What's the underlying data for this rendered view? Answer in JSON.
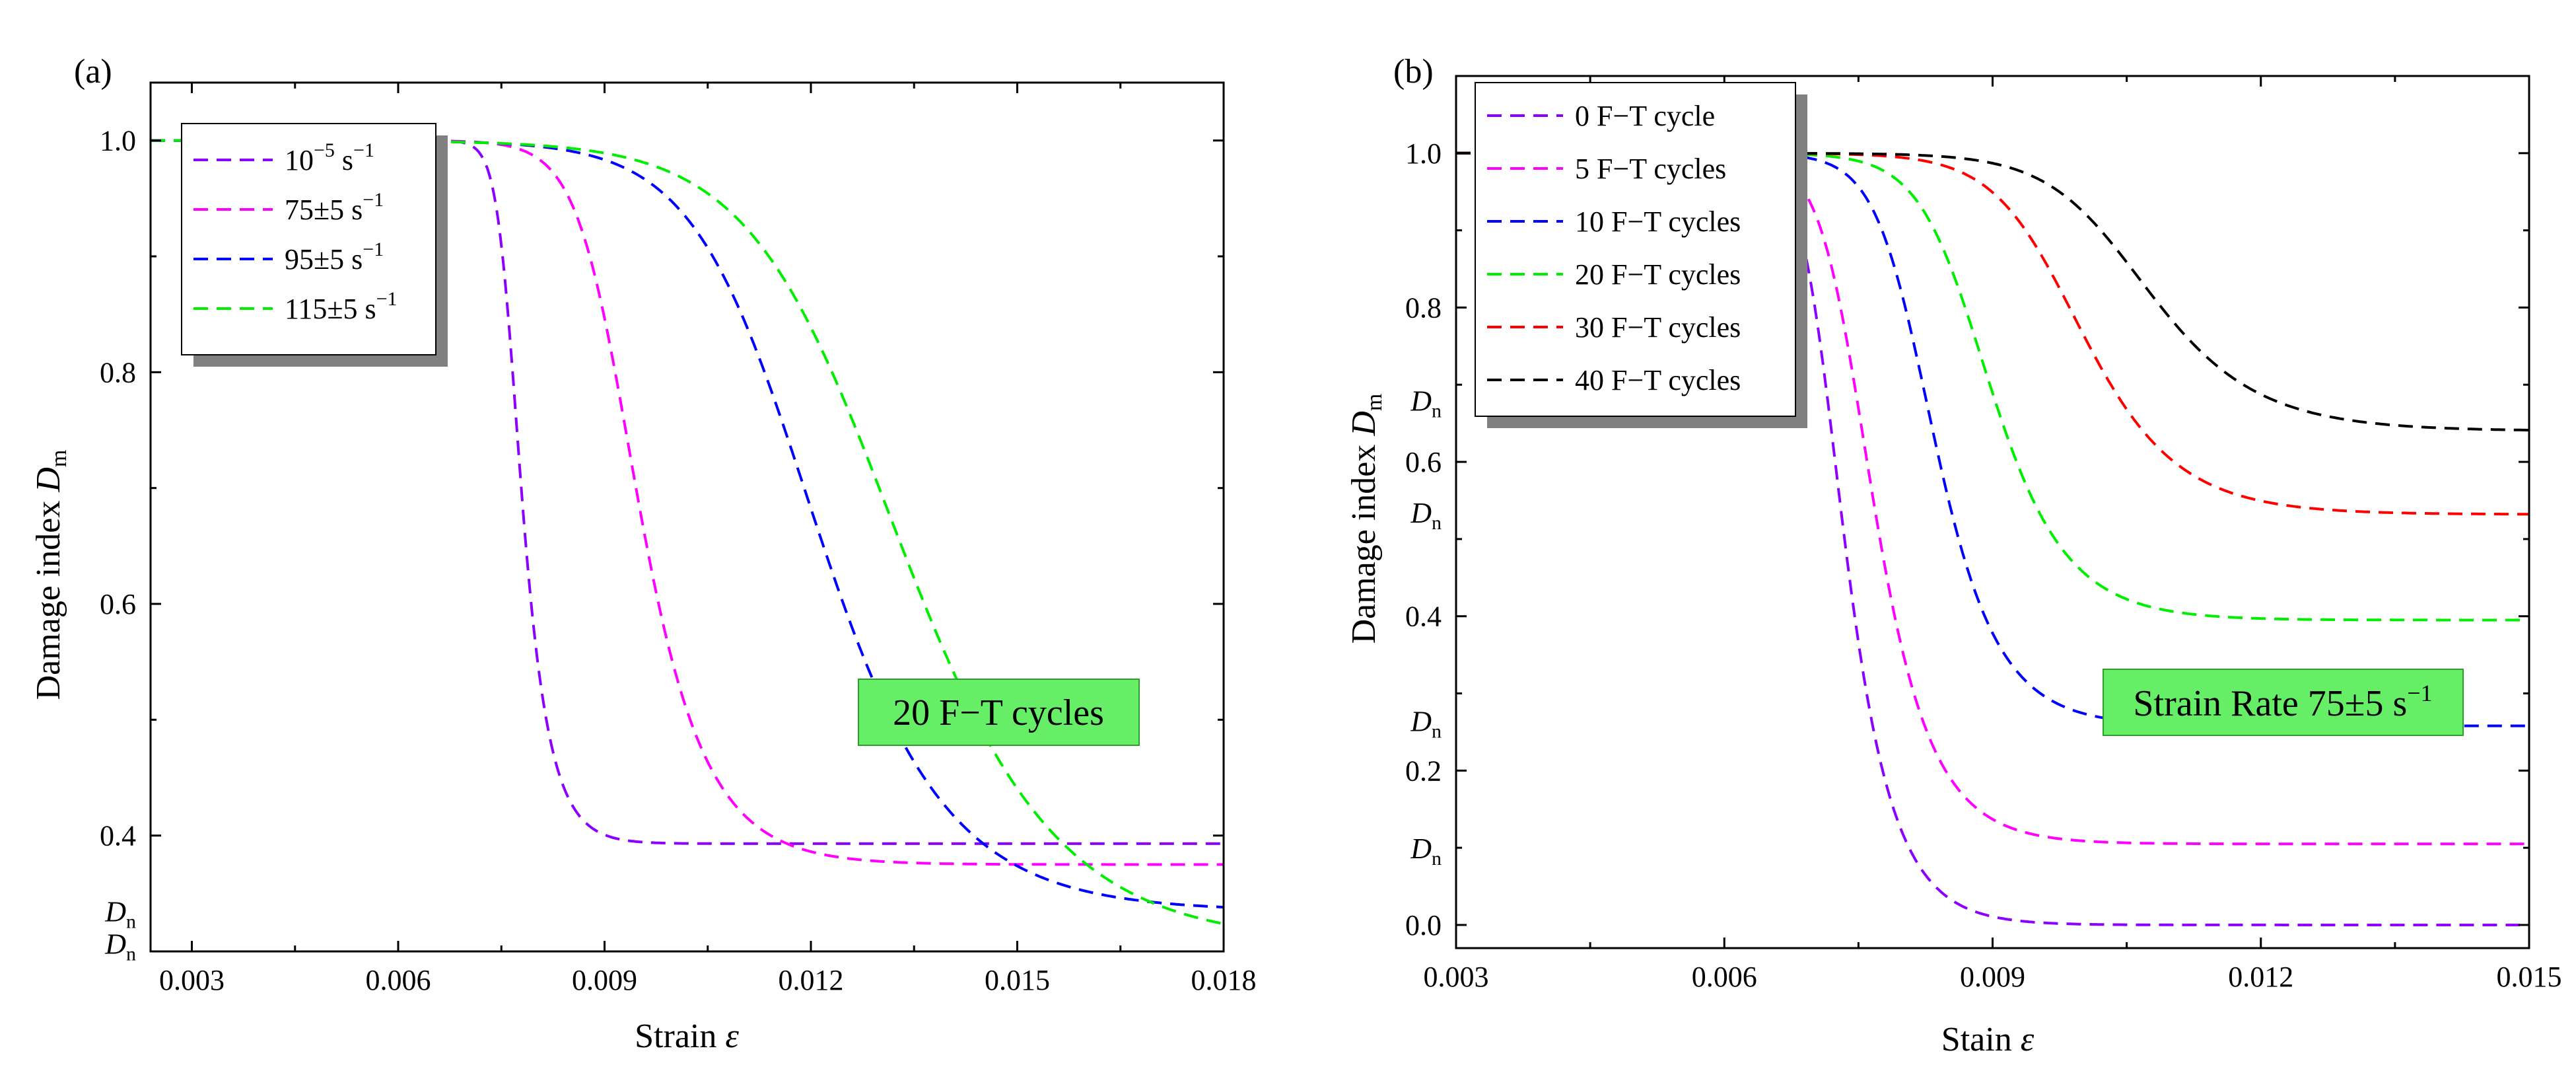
{
  "chart_data": [
    {
      "type": "line",
      "panel_label": "(a)",
      "xlabel": "Strain",
      "xlabel_symbol": "ε",
      "ylabel": "Damage index",
      "ylabel_symbol": "D",
      "ylabel_subscript": "m",
      "xlim": [
        0.0024,
        0.018
      ],
      "ylim": [
        0.3,
        1.05
      ],
      "x_ticks": [
        0.003,
        0.006,
        0.009,
        0.012,
        0.015,
        0.018
      ],
      "x_tick_labels": [
        "0.003",
        "0.006",
        "0.009",
        "0.012",
        "0.015",
        "0.018"
      ],
      "y_ticks": [
        0.4,
        0.6,
        0.8,
        1.0
      ],
      "y_tick_labels": [
        "0.4",
        "0.6",
        "0.8",
        "1.0"
      ],
      "dn_markers": [
        {
          "symbol": "D",
          "subscript": "n",
          "y": 0.335
        },
        {
          "symbol": "D",
          "subscript": "n",
          "y": 0.307
        }
      ],
      "annotation": "20 F−T cycles",
      "legend_position": "top-left",
      "series": [
        {
          "name": "10⁻⁵ s⁻¹",
          "legend_base": "10",
          "legend_exp": "−5",
          "legend_unit": "s",
          "legend_unit_exp": "−1",
          "color": "#8b00ff",
          "d0": 0.393,
          "center": 0.0076,
          "width": 0.00032,
          "steep": 2.4
        },
        {
          "name": "75±5 s⁻¹",
          "legend_base": "75±5",
          "legend_exp": "",
          "legend_unit": "s",
          "legend_unit_exp": "−1",
          "color": "#ff00ff",
          "d0": 0.375,
          "center": 0.0091,
          "width": 0.00072,
          "steep": 2.0
        },
        {
          "name": "95±5 s⁻¹",
          "legend_base": "95±5",
          "legend_exp": "",
          "legend_unit": "s",
          "legend_unit_exp": "−1",
          "color": "#0000ff",
          "d0": 0.335,
          "center": 0.0116,
          "width": 0.0012,
          "steep": 1.5
        },
        {
          "name": "115±5 s⁻¹",
          "legend_base": "115±5",
          "legend_exp": "",
          "legend_unit": "s",
          "legend_unit_exp": "−1",
          "color": "#00ee00",
          "d0": 0.307,
          "center": 0.0128,
          "width": 0.0014,
          "steep": 1.4
        }
      ]
    },
    {
      "type": "line",
      "panel_label": "(b)",
      "xlabel": "Stain",
      "xlabel_symbol": "ε",
      "ylabel": "Damage index",
      "ylabel_symbol": "D",
      "ylabel_subscript": "m",
      "xlim": [
        0.003,
        0.015
      ],
      "ylim": [
        -0.03,
        1.1
      ],
      "x_ticks": [
        0.003,
        0.006,
        0.009,
        0.012,
        0.015
      ],
      "x_tick_labels": [
        "0.003",
        "0.006",
        "0.009",
        "0.012",
        "0.015"
      ],
      "y_ticks": [
        0.0,
        0.2,
        0.4,
        0.6,
        0.8,
        1.0
      ],
      "y_tick_labels": [
        "0.0",
        "0.2",
        "0.4",
        "0.6",
        "0.8",
        "1.0"
      ],
      "dn_markers": [
        {
          "symbol": "D",
          "subscript": "n",
          "y": 0.68
        },
        {
          "symbol": "D",
          "subscript": "n",
          "y": 0.535
        },
        {
          "symbol": "D",
          "subscript": "n",
          "y": 0.265
        },
        {
          "symbol": "D",
          "subscript": "n",
          "y": 0.1
        }
      ],
      "annotation_text": "Strain Rate",
      "annotation_value": "75±5",
      "annotation_unit": "s",
      "annotation_unit_exp": "−1",
      "legend_position": "top-left",
      "series": [
        {
          "name": "0 F−T cycle",
          "color": "#8b00ff",
          "d0": 0.0,
          "center": 0.0071,
          "width": 0.00042,
          "steep": 2.2
        },
        {
          "name": "5 F−T cycles",
          "color": "#ff00ff",
          "d0": 0.105,
          "center": 0.0074,
          "width": 0.00048,
          "steep": 2.0
        },
        {
          "name": "10 F−T cycles",
          "color": "#0000ff",
          "d0": 0.258,
          "center": 0.0081,
          "width": 0.0005,
          "steep": 1.8
        },
        {
          "name": "20 F−T cycles",
          "color": "#00ee00",
          "d0": 0.395,
          "center": 0.0087,
          "width": 0.00058,
          "steep": 1.7
        },
        {
          "name": "30 F−T cycles",
          "color": "#ff0000",
          "d0": 0.532,
          "center": 0.0097,
          "width": 0.0007,
          "steep": 1.6
        },
        {
          "name": "40 F−T cycles",
          "color": "#000000",
          "d0": 0.64,
          "center": 0.0104,
          "width": 0.0008,
          "steep": 1.6
        }
      ]
    }
  ]
}
